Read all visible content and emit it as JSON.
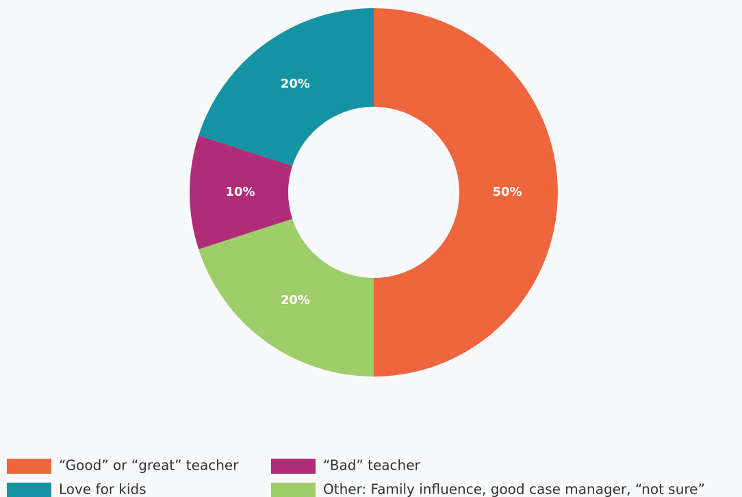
{
  "chart_data": {
    "type": "donut",
    "categories": [
      "“Good” or “great” teacher",
      "Other: Family influence, good case manager, “not sure”",
      "“Bad” teacher",
      "Love for kids"
    ],
    "values": [
      50,
      20,
      10,
      20
    ],
    "value_labels": [
      "50%",
      "20%",
      "10%",
      "20%"
    ],
    "colors": [
      "#ee653e",
      "#9fcd6a",
      "#ae2c78",
      "#1693a3"
    ]
  }
}
